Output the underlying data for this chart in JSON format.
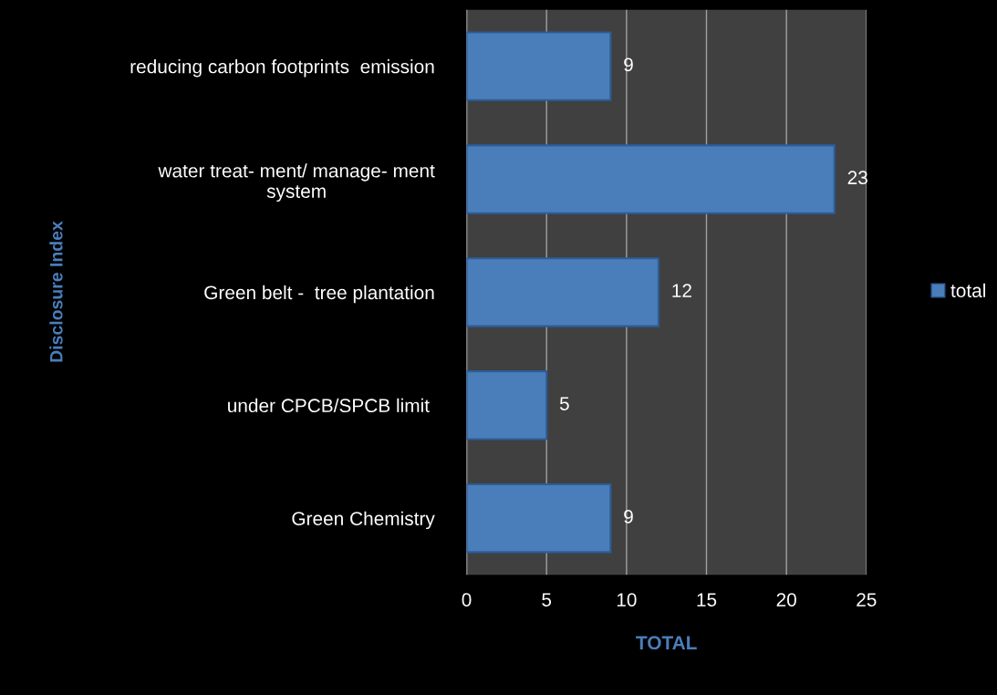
{
  "chart_data": {
    "type": "bar",
    "orientation": "horizontal",
    "xlabel": "TOTAL",
    "annotations": [
      "Disclosure Index"
    ],
    "categories": [
      "reducing carbon footprints  emission",
      "water treat- ment/ manage- ment\nsystem",
      "Green belt -  tree plantation",
      "under CPCB/SPCB limit ",
      "Green Chemistry"
    ],
    "series": [
      {
        "name": "total",
        "color": "#4a7ebb",
        "values": [
          9,
          23,
          12,
          5,
          9
        ]
      }
    ],
    "xlim": [
      0,
      25
    ],
    "xticks": [
      0,
      5,
      10,
      15,
      20,
      25
    ],
    "grid": "x",
    "legend": "right",
    "data_labels": true
  }
}
